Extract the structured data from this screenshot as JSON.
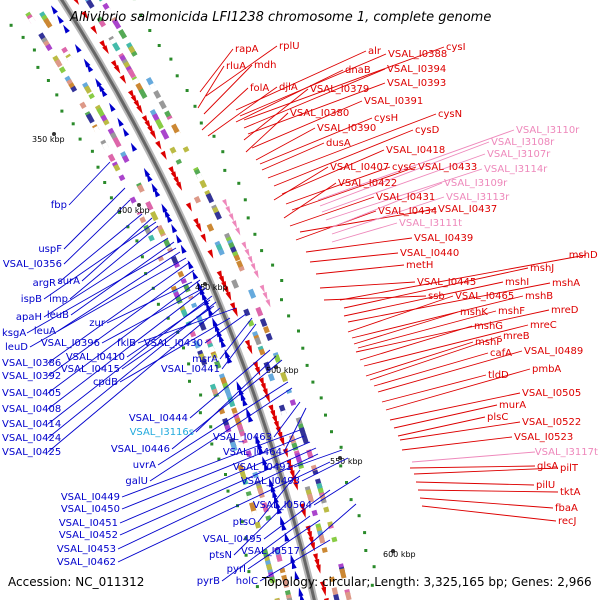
{
  "title": "Aliivibrio salmonicida LFI1238 chromosome 1, complete genome",
  "footer": {
    "accession": "Accession: NC_011312",
    "summary": "Topology: circular; Length: 3,325,165 bp; Genes: 2,966"
  },
  "colors": {
    "forward": "#dd0000",
    "reverse": "#0000cc",
    "rna": "#ee88bb",
    "trna": "#22aadd"
  },
  "ticks": [
    "350 kbp",
    "400 kbp",
    "450 kbp",
    "500 kbp",
    "550 kbp",
    "600 kbp"
  ],
  "left_labels": [
    "fbp",
    "uspF",
    "VSAL_I0356",
    "argR",
    "surA",
    "ispB",
    "imp",
    "apaH",
    "leuB",
    "ksgA",
    "leuA",
    "leuD",
    "VSAL_I0386",
    "VSAL_I0392",
    "VSAL_I0405",
    "VSAL_I0408",
    "VSAL_I0414",
    "VSAL_I0424",
    "VSAL_I0425",
    "zur",
    "VSAL_I0396",
    "VSAL_I0410",
    "VSAL_I0415",
    "cpdB",
    "fklB",
    "VSAL_I0430",
    "msrA",
    "VSAL_I0441",
    "VSAL_I0444",
    "VSAL_I3116s",
    "VSAL_I0446",
    "VSAL_I0463",
    "VSAL_I0464",
    "uvrA",
    "galU",
    "VSAL_I0491",
    "VSAL_I0493",
    "VSAL_I0449",
    "VSAL_I0450",
    "VSAL_I0451",
    "VSAL_I0452",
    "VSAL_I0453",
    "VSAL_I0462",
    "VSAL_I0504",
    "ptsO",
    "VSAL_I0495",
    "ptsN",
    "VSAL_I0517",
    "pyrI",
    "pyrB",
    "holC"
  ],
  "right_labels": [
    "rapA",
    "rplU",
    "rluA",
    "mdh",
    "folA",
    "djlA",
    "alr",
    "VSAL_I0388",
    "cysI",
    "dnaB",
    "VSAL_I0394",
    "VSAL_I0393",
    "VSAL_I0379",
    "VSAL_I0391",
    "VSAL_I0380",
    "VSAL_I0390",
    "cysH",
    "dusA",
    "cysN",
    "cysD",
    "VSAL_I0418",
    "VSAL_I0407",
    "cysC",
    "VSAL_I0433",
    "VSAL_I0422",
    "VSAL_I0431",
    "VSAL_I0437",
    "VSAL_I0434",
    "VSAL_I0439",
    "VSAL_I0440",
    "metH",
    "VSAL_I0445",
    "ssb",
    "mshD",
    "mshJ",
    "mshI",
    "mshA",
    "VSAL_I0465",
    "mshB",
    "mshK",
    "mshF",
    "mreD",
    "mshG",
    "mreC",
    "mshP",
    "mreB",
    "cafA",
    "VSAL_I0489",
    "tldD",
    "pmbA",
    "VSAL_I0505",
    "murA",
    "plsC",
    "VSAL_I0522",
    "VSAL_I0523",
    "glsA",
    "pilT",
    "pilU",
    "tktA",
    "fbaA",
    "recJ"
  ],
  "rna_labels": [
    "VSAL_I3110r",
    "VSAL_I3108r",
    "VSAL_I3107r",
    "VSAL_I3114r",
    "VSAL_I3109r",
    "VSAL_I3113r",
    "VSAL_I3111t",
    "VSAL_I3117t"
  ]
}
